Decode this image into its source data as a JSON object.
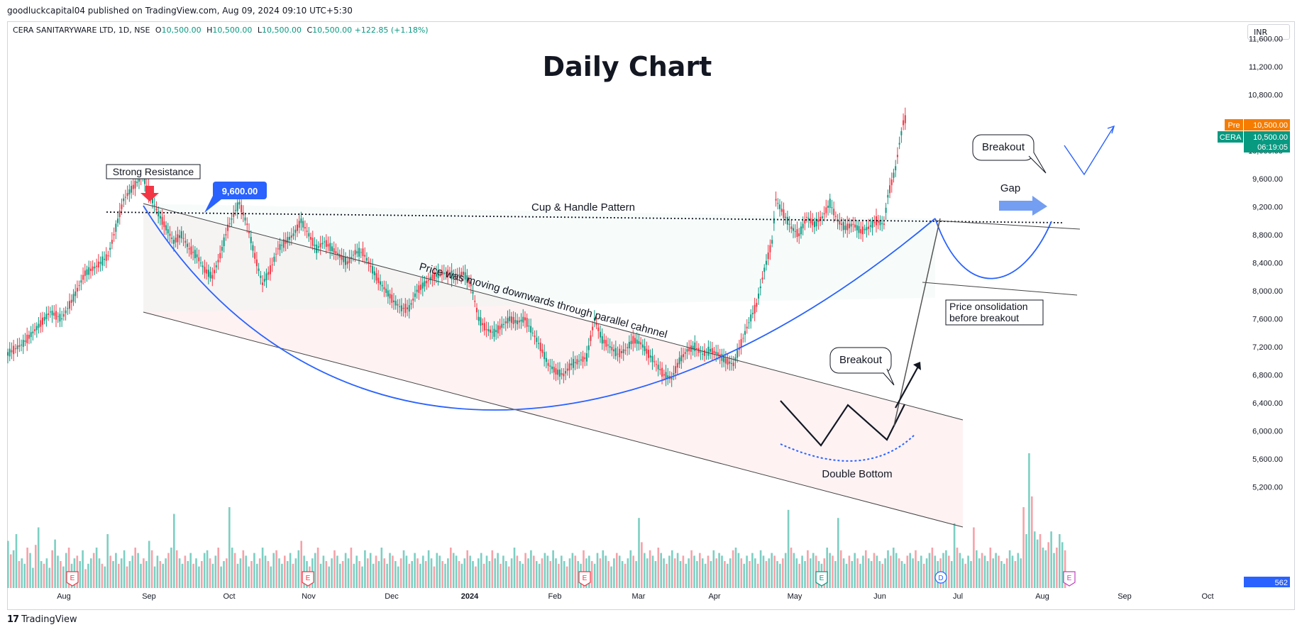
{
  "header": {
    "publisher_line": "goodluckcapital04 published on TradingView.com, Aug 09, 2024 09:10 UTC+5:30",
    "symbol_name": "CERA SANITARYWARE LTD, 1D, NSE",
    "open_label": "O",
    "open_value": "10,500.00",
    "high_label": "H",
    "high_value": "10,500.00",
    "low_label": "L",
    "low_value": "10,500.00",
    "close_label": "C",
    "close_value": "10,500.00",
    "change": "+122.85 (+1.18%)",
    "currency": "INR"
  },
  "footer": {
    "logo": "17",
    "brand": "TradingView"
  },
  "colors": {
    "up": "#089981",
    "down": "#f23645",
    "up_vol": "#7ccfc3",
    "down_vol": "#f7a1a8",
    "blue": "#2962ff",
    "pre": "#f57c00"
  },
  "chart_data": {
    "type": "candlestick",
    "title": "Daily Chart",
    "y_axis_ticks": [
      "11,600.00",
      "11,200.00",
      "10,800.00",
      "10,400.00",
      "10,000.00",
      "9,600.00",
      "9,200.00",
      "8,800.00",
      "8,400.00",
      "8,000.00",
      "7,600.00",
      "7,200.00",
      "6,800.00",
      "6,400.00",
      "6,000.00",
      "5,600.00",
      "5,200.00"
    ],
    "x_axis_ticks": [
      "Aug",
      "Sep",
      "Oct",
      "Nov",
      "Dec",
      "2024",
      "Feb",
      "Mar",
      "Apr",
      "May",
      "Jun",
      "Jul",
      "Aug",
      "Sep",
      "Oct"
    ],
    "ylim": [
      4950,
      11750
    ],
    "price_tags": [
      {
        "label": "Pre",
        "value": "10,500.00"
      },
      {
        "label": "CERA",
        "value": "10,500.00",
        "countdown": "06:19:05"
      }
    ],
    "volume_tag": "562",
    "annotations": {
      "strong_resistance": "Strong Resistance",
      "resistance_price": "9,600.00",
      "cup_handle": "Cup & Handle Pattern",
      "channel_text": "Price was moving downwards through parallel cahnnel",
      "breakout_1": "Breakout",
      "breakout_2": "Breakout",
      "gap": "Gap",
      "double_bottom": "Double Bottom",
      "consolidation_line1": "Price onsolidation",
      "consolidation_line2": "before breakout"
    },
    "event_markers": [
      "E",
      "E",
      "E",
      "E",
      "D",
      "E"
    ],
    "price_path": [
      [
        0,
        7100
      ],
      [
        8,
        7250
      ],
      [
        16,
        7500
      ],
      [
        22,
        7700
      ],
      [
        28,
        7600
      ],
      [
        34,
        7900
      ],
      [
        40,
        8250
      ],
      [
        46,
        8350
      ],
      [
        52,
        8500
      ],
      [
        56,
        8900
      ],
      [
        60,
        9300
      ],
      [
        64,
        9450
      ],
      [
        68,
        9580
      ],
      [
        70,
        9650
      ],
      [
        74,
        9350
      ],
      [
        78,
        9100
      ],
      [
        82,
        8900
      ],
      [
        86,
        8700
      ],
      [
        90,
        8800
      ],
      [
        94,
        8600
      ],
      [
        98,
        8500
      ],
      [
        102,
        8300
      ],
      [
        106,
        8200
      ],
      [
        110,
        8500
      ],
      [
        114,
        8900
      ],
      [
        118,
        9150
      ],
      [
        120,
        9250
      ],
      [
        124,
        8950
      ],
      [
        128,
        8500
      ],
      [
        132,
        8100
      ],
      [
        136,
        8300
      ],
      [
        140,
        8600
      ],
      [
        144,
        8700
      ],
      [
        148,
        8800
      ],
      [
        152,
        9000
      ],
      [
        156,
        8800
      ],
      [
        160,
        8600
      ],
      [
        164,
        8700
      ],
      [
        168,
        8600
      ],
      [
        172,
        8500
      ],
      [
        176,
        8400
      ],
      [
        180,
        8550
      ],
      [
        184,
        8550
      ],
      [
        188,
        8350
      ],
      [
        192,
        8150
      ],
      [
        196,
        8000
      ],
      [
        200,
        7850
      ],
      [
        204,
        7750
      ],
      [
        208,
        7750
      ],
      [
        212,
        8000
      ],
      [
        216,
        8100
      ],
      [
        220,
        8200
      ],
      [
        224,
        8250
      ],
      [
        228,
        8250
      ],
      [
        232,
        8200
      ],
      [
        236,
        8250
      ],
      [
        240,
        8100
      ],
      [
        244,
        7600
      ],
      [
        248,
        7450
      ],
      [
        252,
        7400
      ],
      [
        256,
        7500
      ],
      [
        260,
        7600
      ],
      [
        264,
        7550
      ],
      [
        268,
        7600
      ],
      [
        272,
        7400
      ],
      [
        276,
        7200
      ],
      [
        280,
        6950
      ],
      [
        284,
        6850
      ],
      [
        288,
        6800
      ],
      [
        292,
        6950
      ],
      [
        296,
        7000
      ],
      [
        300,
        7050
      ],
      [
        304,
        7600
      ],
      [
        308,
        7300
      ],
      [
        312,
        7200
      ],
      [
        316,
        7100
      ],
      [
        320,
        7150
      ],
      [
        324,
        7300
      ],
      [
        328,
        7250
      ],
      [
        332,
        7100
      ],
      [
        336,
        6950
      ],
      [
        340,
        6800
      ],
      [
        344,
        6750
      ],
      [
        348,
        7000
      ],
      [
        352,
        7150
      ],
      [
        356,
        7200
      ],
      [
        360,
        7100
      ],
      [
        364,
        7150
      ],
      [
        368,
        7100
      ],
      [
        372,
        7000
      ],
      [
        376,
        6950
      ],
      [
        380,
        7250
      ],
      [
        384,
        7550
      ],
      [
        388,
        7800
      ],
      [
        392,
        8300
      ],
      [
        396,
        8700
      ],
      [
        398,
        9300
      ],
      [
        402,
        9100
      ],
      [
        406,
        8900
      ],
      [
        410,
        8800
      ],
      [
        414,
        9050
      ],
      [
        418,
        8950
      ],
      [
        422,
        9050
      ],
      [
        426,
        9250
      ],
      [
        430,
        9000
      ],
      [
        434,
        8900
      ],
      [
        438,
        8950
      ],
      [
        442,
        8850
      ],
      [
        446,
        8900
      ],
      [
        450,
        9000
      ],
      [
        454,
        8950
      ],
      [
        456,
        9350
      ],
      [
        460,
        9750
      ],
      [
        462,
        10100
      ],
      [
        464,
        10400
      ],
      [
        466,
        10500
      ]
    ],
    "volume": [
      35,
      25,
      28,
      40,
      20,
      22,
      18,
      30,
      26,
      15,
      32,
      45,
      20,
      18,
      22,
      15,
      28,
      36,
      24,
      20,
      16,
      26,
      30,
      18,
      22,
      24,
      20,
      28,
      14,
      18,
      22,
      26,
      30,
      22,
      18,
      16,
      40,
      24,
      20,
      26,
      18,
      22,
      28,
      16,
      20,
      24,
      30,
      26,
      18,
      22,
      20,
      35,
      28,
      16,
      24,
      20,
      18,
      22,
      26,
      30,
      55,
      28,
      22,
      18,
      24,
      20,
      26,
      18,
      22,
      16,
      20,
      26,
      28,
      22,
      18,
      24,
      30,
      16,
      20,
      22,
      60,
      30,
      26,
      18,
      22,
      28,
      24,
      16,
      20,
      26,
      18,
      22,
      30,
      24,
      20,
      16,
      26,
      28,
      22,
      18,
      24,
      20,
      26,
      18,
      22,
      28,
      35,
      24,
      20,
      16,
      22,
      26,
      30,
      18,
      24,
      20,
      16,
      22,
      28,
      24,
      18,
      20,
      26,
      22,
      30,
      18,
      24,
      20,
      16,
      28,
      22,
      26,
      18,
      24,
      20,
      30,
      22,
      18,
      26,
      24,
      20,
      16,
      22,
      28,
      24,
      18,
      20,
      26,
      22,
      18,
      24,
      20,
      28,
      22,
      16,
      26,
      24,
      20,
      18,
      22,
      30,
      26,
      24,
      20,
      18,
      22,
      28,
      24,
      20,
      16,
      22,
      26,
      18,
      24,
      20,
      28,
      22,
      26,
      18,
      24,
      20,
      16,
      22,
      30,
      24,
      20,
      18,
      26,
      22,
      28,
      24,
      20,
      18,
      22,
      26,
      24,
      20,
      28,
      22,
      18,
      24,
      20,
      16,
      22,
      26,
      24,
      20,
      18,
      28,
      22,
      24,
      20,
      18,
      26,
      22,
      28,
      24,
      20,
      16,
      22,
      26,
      24,
      20,
      18,
      22,
      28,
      24,
      20,
      52,
      34,
      26,
      22,
      28,
      24,
      20,
      30,
      26,
      22,
      18,
      24,
      28,
      22,
      26,
      20,
      24,
      18,
      22,
      28,
      24,
      20,
      26,
      22,
      18,
      24,
      20,
      28,
      22,
      26,
      24,
      20,
      18,
      22,
      28,
      30,
      26,
      22,
      18,
      24,
      20,
      26,
      22,
      18,
      28,
      24,
      20,
      22,
      26,
      24,
      20,
      18,
      22,
      26,
      58,
      30,
      26,
      22,
      18,
      24,
      20,
      28,
      22,
      26,
      24,
      20,
      18,
      22,
      30,
      26,
      24,
      20,
      52,
      28,
      22,
      18,
      24,
      20,
      26,
      22,
      18,
      24,
      28,
      22,
      20,
      26,
      24,
      20,
      18,
      22,
      28,
      24,
      30,
      26,
      22,
      20,
      18,
      24,
      26,
      22,
      28,
      20,
      24,
      18,
      22,
      26,
      30,
      24,
      20,
      22,
      26,
      28,
      24,
      20,
      48,
      30,
      26,
      22,
      18,
      24,
      20,
      45,
      28,
      22,
      26,
      24,
      20,
      30,
      22,
      26,
      24,
      20,
      18,
      22,
      28,
      24,
      20,
      26,
      22,
      60,
      40,
      100,
      68,
      42,
      36,
      40,
      30,
      28,
      34,
      42,
      26,
      30,
      40,
      34,
      28,
      24,
      30,
      26,
      22,
      28,
      30,
      24,
      20,
      26,
      22,
      18,
      24,
      20,
      78,
      87,
      44,
      48,
      30
    ]
  }
}
